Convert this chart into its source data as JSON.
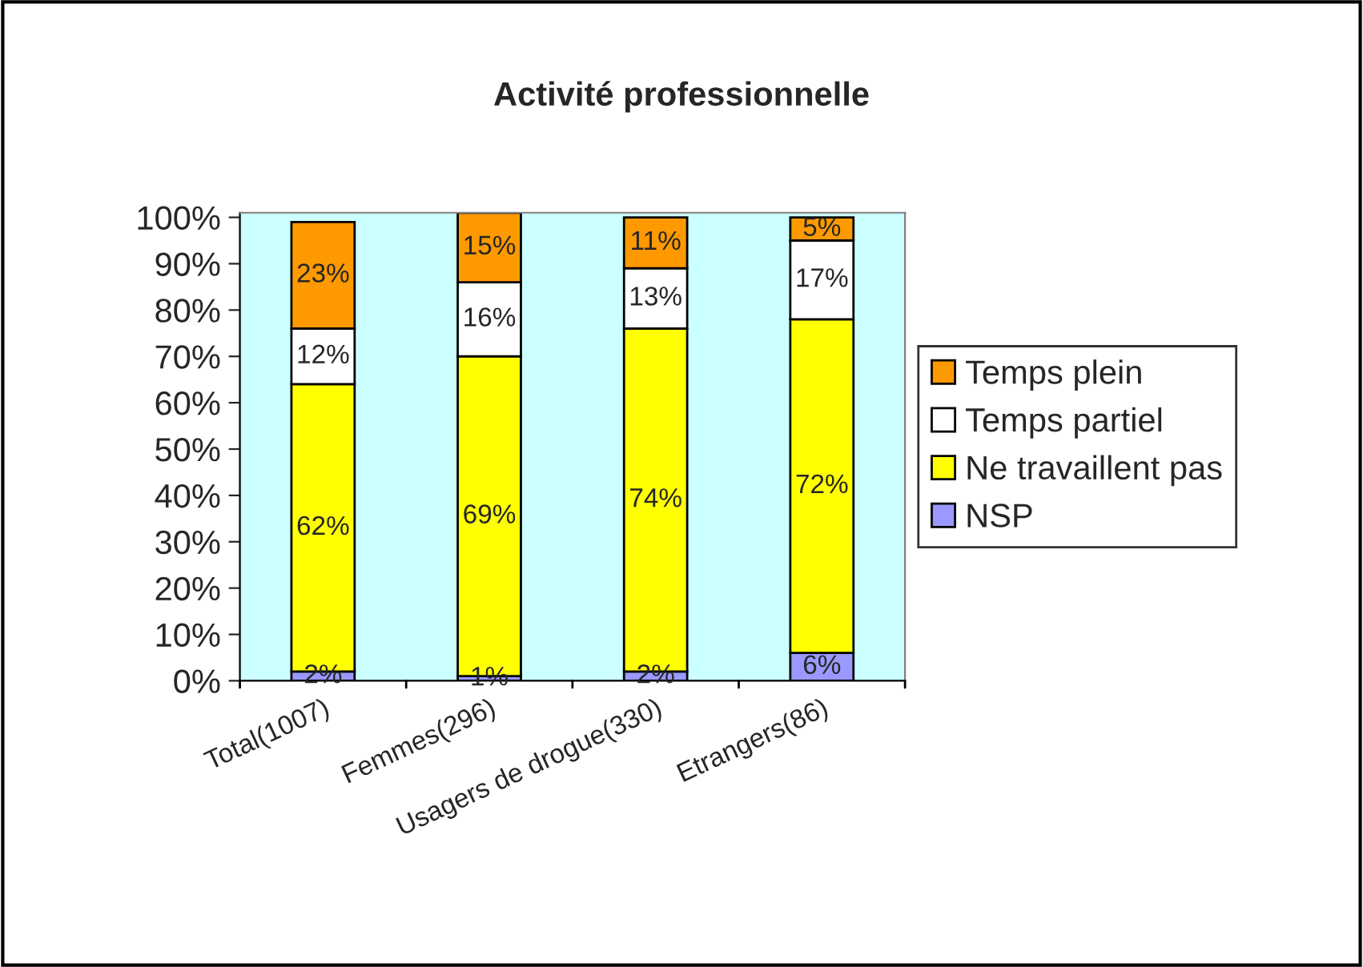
{
  "chart_data": {
    "type": "bar",
    "title": "Activité professionnelle",
    "stacked": true,
    "legend": "right",
    "grid": false,
    "categories": [
      "Total(1007)",
      "Femmes(296)",
      "Usagers de drogue(330)",
      "Etrangers(86)"
    ],
    "series": [
      {
        "name": "NSP",
        "color": "#9999ff",
        "values": [
          2,
          1,
          2,
          6
        ],
        "value_labels": [
          "2%",
          "1%",
          "2%",
          "6%"
        ]
      },
      {
        "name": "Ne travaillent pas",
        "color": "#ffff00",
        "values": [
          62,
          69,
          74,
          72
        ],
        "value_labels": [
          "62%",
          "69%",
          "74%",
          "72%"
        ]
      },
      {
        "name": "Temps partiel",
        "color": "#ffffff",
        "values": [
          12,
          16,
          13,
          17
        ],
        "value_labels": [
          "12%",
          "16%",
          "13%",
          "17%"
        ]
      },
      {
        "name": "Temps plein",
        "color": "#ff9900",
        "values": [
          23,
          15,
          11,
          5
        ],
        "value_labels": [
          "23%",
          "15%",
          "11%",
          "5%"
        ]
      }
    ],
    "ylim": [
      0,
      101
    ],
    "yticks": [
      {
        "value": 0,
        "label": "0%"
      },
      {
        "value": 10,
        "label": "10%"
      },
      {
        "value": 20,
        "label": "20%"
      },
      {
        "value": 30,
        "label": "30%"
      },
      {
        "value": 40,
        "label": "40%"
      },
      {
        "value": 50,
        "label": "50%"
      },
      {
        "value": 60,
        "label": "60%"
      },
      {
        "value": 70,
        "label": "70%"
      },
      {
        "value": 80,
        "label": "80%"
      },
      {
        "value": 90,
        "label": "90%"
      },
      {
        "value": 100,
        "label": "100%"
      }
    ]
  }
}
